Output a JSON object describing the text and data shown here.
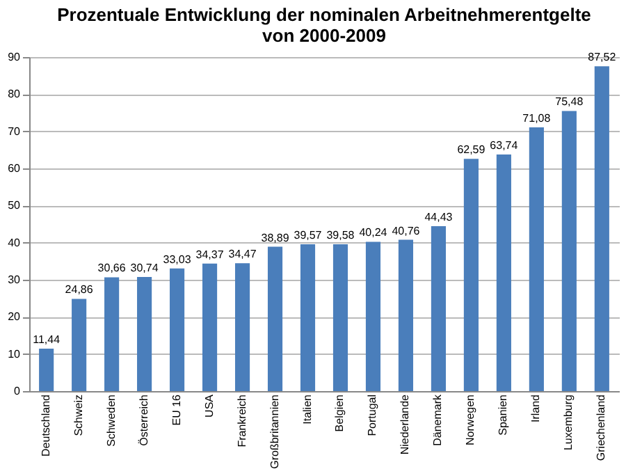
{
  "chart_data": {
    "type": "bar",
    "title": [
      "Prozentuale Entwicklung der nominalen Arbeitnehmerentgelte",
      "von 2000-2009"
    ],
    "categories": [
      "Deutschland",
      "Schweiz",
      "Schweden",
      "Österreich",
      "EU 16",
      "USA",
      "Frankreich",
      "Großbritannien",
      "Italien",
      "Belgien",
      "Portugal",
      "Niederlande",
      "Dänemark",
      "Norwegen",
      "Spanien",
      "Irland",
      "Luxemburg",
      "Griechenland"
    ],
    "values": [
      11.44,
      24.86,
      30.66,
      30.74,
      33.03,
      34.37,
      34.47,
      38.89,
      39.57,
      39.58,
      40.24,
      40.76,
      44.43,
      62.59,
      63.74,
      71.08,
      75.48,
      87.52
    ],
    "value_labels": [
      "11,44",
      "24,86",
      "30,66",
      "30,74",
      "33,03",
      "34,37",
      "34,47",
      "38,89",
      "39,57",
      "39,58",
      "40,24",
      "40,76",
      "44,43",
      "62,59",
      "63,74",
      "71,08",
      "75,48",
      "87,52"
    ],
    "color": "#4a7ebb",
    "ylim": [
      0,
      90
    ],
    "yticks": [
      0,
      10,
      20,
      30,
      40,
      50,
      60,
      70,
      80,
      90
    ],
    "grid": "y"
  }
}
